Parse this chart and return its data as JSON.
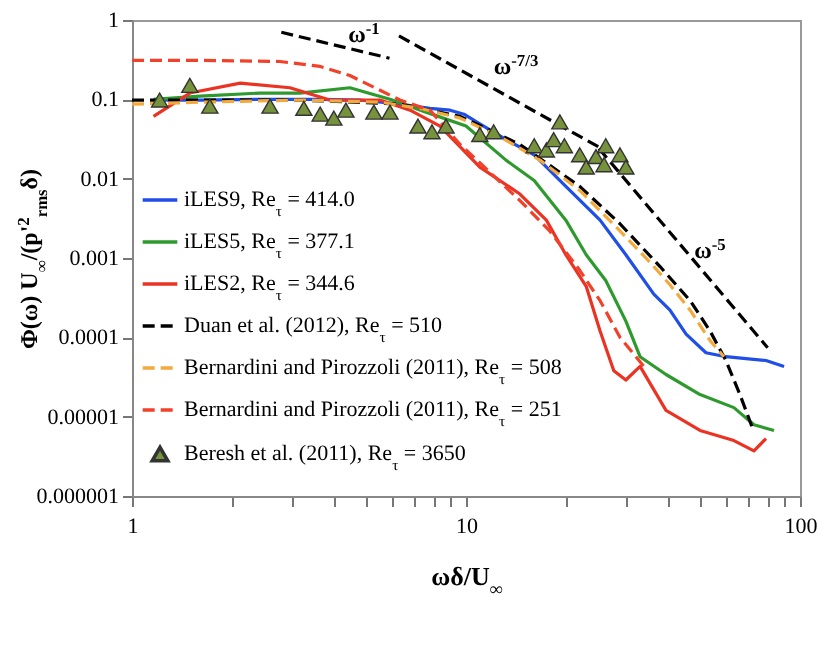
{
  "chart_data": {
    "type": "line",
    "xlabel": "ωδ/U$_{∞}$",
    "ylabel": "Φ(ω) U$_{∞}$/(p'$^{2}$$_{rms}$δ)",
    "log": "xy",
    "xlim": [
      1,
      100
    ],
    "ylim": [
      1e-06,
      1
    ],
    "xticks": [
      1,
      {
        "value": 2,
        "label": null
      },
      {
        "value": 3,
        "label": null
      },
      {
        "value": 4,
        "label": null
      },
      {
        "value": 5,
        "label": null
      },
      {
        "value": 6,
        "label": null
      },
      {
        "value": 7,
        "label": null
      },
      {
        "value": 8,
        "label": null
      },
      {
        "value": 9,
        "label": null
      },
      10,
      {
        "value": 20,
        "label": null
      },
      {
        "value": 30,
        "label": null
      },
      {
        "value": 40,
        "label": null
      },
      {
        "value": 50,
        "label": null
      },
      {
        "value": 60,
        "label": null
      },
      {
        "value": 70,
        "label": null
      },
      {
        "value": 80,
        "label": null
      },
      {
        "value": 90,
        "label": null
      },
      100
    ],
    "yticks": [
      {
        "value": 1e-06,
        "label": "0.000001"
      },
      {
        "value": 1e-05,
        "label": "0.00001"
      },
      0.0001,
      0.001,
      0.01,
      0.1,
      1
    ],
    "legend": "bottom left",
    "series": [
      {
        "name": "iLES9, Re$_{τ}$ = 414.0",
        "color": "#1f4fe6",
        "x": [
          1.16,
          1.6,
          2.42,
          3.66,
          4.81,
          6.34,
          7.8,
          8.96,
          9.86,
          11.0,
          13.2,
          16.0,
          19.9,
          25.2,
          30.1,
          36.5,
          40.8,
          45.6,
          52.3,
          60.0,
          68.9,
          79.1,
          89.6
        ],
        "values": [
          0.098,
          0.098,
          0.1,
          0.1,
          0.098,
          0.087,
          0.077,
          0.073,
          0.065,
          0.049,
          0.031,
          0.02,
          0.008,
          0.003,
          0.0011,
          0.00035,
          0.00022,
          0.00011,
          6.4e-05,
          5.7e-05,
          5.4e-05,
          5.1e-05,
          4.3e-05
        ]
      },
      {
        "name": "iLES5, Re$_{τ}$ = 377.1",
        "color": "#2e9a2e",
        "x": [
          1.16,
          1.6,
          2.42,
          3.18,
          4.49,
          5.92,
          7.59,
          10.0,
          13.2,
          16.0,
          19.9,
          22.9,
          26.2,
          30.1,
          33.2,
          39.7,
          50.2,
          63.4,
          72.8,
          83.6
        ],
        "values": [
          0.1,
          0.11,
          0.12,
          0.12,
          0.14,
          0.1,
          0.069,
          0.046,
          0.017,
          0.0095,
          0.003,
          0.0011,
          0.00052,
          0.00016,
          5.7e-05,
          3.4e-05,
          1.9e-05,
          1.3e-05,
          7.9e-06,
          6.7e-06
        ]
      },
      {
        "name": "iLES2, Re$_{τ}$ = 344.6",
        "color": "#ea3323",
        "x": [
          1.16,
          1.49,
          2.11,
          2.97,
          3.91,
          5.53,
          6.8,
          8.36,
          11.0,
          14.5,
          17.4,
          19.9,
          22.9,
          25.2,
          27.7,
          30.1,
          33.2,
          39.7,
          50.2,
          63.4,
          72.8,
          79.1
        ],
        "values": [
          0.061,
          0.12,
          0.16,
          0.14,
          0.098,
          0.098,
          0.073,
          0.046,
          0.014,
          0.0064,
          0.003,
          0.0011,
          0.00044,
          0.00012,
          3.8e-05,
          2.9e-05,
          4.3e-05,
          1.2e-05,
          6.7e-06,
          5e-06,
          3.7e-06,
          5.3e-06
        ]
      },
      {
        "name": "Duan et al. (2012),   Re$_{τ}$ = 510",
        "color": "#000000",
        "line_style": "dashed",
        "x": [
          1,
          3.18,
          6.34,
          9.6,
          14.5,
          21.9,
          28.9,
          38.1,
          46.9,
          53.8,
          60.0,
          66.1,
          71.8
        ],
        "values": [
          0.098,
          0.098,
          0.087,
          0.061,
          0.027,
          0.008,
          0.0027,
          0.00078,
          0.00029,
          0.00012,
          5.1e-05,
          1.9e-05,
          7.5e-06
        ]
      },
      {
        "name": "Bernardini and Pirozzoli (2011),  Re$_{τ}$ = 508",
        "color": "#f4a93c",
        "line_style": "dashed",
        "x": [
          1,
          1.6,
          3.18,
          5.53,
          7.28,
          9.6,
          12.6,
          16.7,
          21.9,
          28.9,
          35.6,
          40.8,
          46.9,
          53.8,
          59.2
        ],
        "values": [
          0.087,
          0.092,
          0.098,
          0.092,
          0.077,
          0.058,
          0.034,
          0.017,
          0.0071,
          0.0022,
          0.00088,
          0.00046,
          0.00022,
          9.1e-05,
          5.7e-05
        ]
      },
      {
        "name": "Bernardini and Pirozzoli (2011),   Re$_{τ}$ = 251",
        "color": "#f2412a",
        "line_style": "dashed",
        "x": [
          1,
          1.6,
          2.77,
          3.66,
          4.49,
          5.53,
          6.34,
          7.8,
          9.6,
          11.8,
          14.5,
          17.8,
          21.9,
          25.2,
          28.9,
          34.1
        ],
        "values": [
          0.31,
          0.31,
          0.3,
          0.26,
          0.2,
          0.13,
          0.098,
          0.073,
          0.027,
          0.012,
          0.0053,
          0.0022,
          0.0007,
          0.00029,
          0.0001,
          4.3e-05
        ]
      },
      {
        "name": "Beresh et al. (2011),  Re$_{τ}$ = 3650",
        "type": "scatter",
        "marker": "triangle",
        "color": "#76923c",
        "x": [
          1.21,
          1.49,
          1.71,
          2.59,
          3.27,
          3.66,
          4.02,
          4.37,
          5.3,
          5.92,
          7.18,
          7.91,
          8.71,
          11.0,
          12.1,
          16.0,
          17.4,
          18.3,
          19.1,
          19.7,
          21.9,
          22.9,
          24.5,
          25.9,
          26.2,
          28.9,
          30.1
        ],
        "values": [
          0.098,
          0.15,
          0.082,
          0.082,
          0.077,
          0.065,
          0.058,
          0.073,
          0.069,
          0.069,
          0.046,
          0.039,
          0.046,
          0.036,
          0.039,
          0.026,
          0.023,
          0.031,
          0.052,
          0.026,
          0.02,
          0.014,
          0.019,
          0.015,
          0.026,
          0.02,
          0.014
        ]
      },
      {
        "color": "#000000",
        "line_style": "dashed",
        "x": [
          2.8,
          5.9
        ],
        "values": [
          0.7,
          0.33
        ]
      },
      {
        "color": "#000000",
        "line_style": "dashed",
        "x": [
          6.3,
          25
        ],
        "values": [
          0.63,
          0.025
        ]
      },
      {
        "color": "#000000",
        "line_style": "dashed",
        "x": [
          25,
          80
        ],
        "values": [
          0.024,
          7.4e-05
        ]
      }
    ],
    "annotations": [
      "ω$^{-1}$",
      "ω$^{-7/3}$",
      "ω$^{-5}$"
    ]
  }
}
